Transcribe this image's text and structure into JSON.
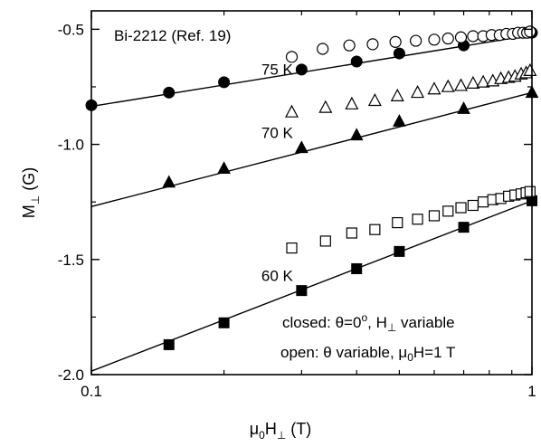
{
  "chart_data": {
    "type": "scatter",
    "title": "",
    "xlabel": {
      "main": "μ",
      "sub1": "0",
      "mid": "H",
      "sub2": "⊥",
      "unit": " (T)"
    },
    "ylabel": {
      "main": "M",
      "sub": "⊥",
      "unit": " (G)"
    },
    "x_scale": "log",
    "xlim": [
      0.1,
      1
    ],
    "ylim": [
      -2.0,
      -0.42
    ],
    "x_ticks": [
      0.1,
      1
    ],
    "x_tick_labels": [
      "0.1",
      "1"
    ],
    "y_ticks": [
      -2.0,
      -1.5,
      -1.0,
      -0.5
    ],
    "y_tick_labels": [
      "-2.0",
      "-1.5",
      "-1.0",
      "-0.5"
    ],
    "grid": false,
    "annotations": {
      "source": "Bi-2212 (Ref. 19)",
      "closed_legend": {
        "prefix": "closed: θ=0",
        "degree": "o",
        "suffix": ", H",
        "sub": "⊥",
        "tail": " variable"
      },
      "open_legend": {
        "prefix": "open: θ variable, μ",
        "sub": "0",
        "tail": "H=1 T"
      }
    },
    "series": [
      {
        "label": "75 K",
        "style": "closed",
        "marker": "circle",
        "x": [
          0.1,
          0.15,
          0.2,
          0.3,
          0.4,
          0.5,
          0.7,
          1.0
        ],
        "y": [
          -0.83,
          -0.775,
          -0.73,
          -0.675,
          -0.64,
          -0.605,
          -0.57,
          -0.515
        ]
      },
      {
        "label": "75 K",
        "style": "open",
        "marker": "circle",
        "x": [
          0.285,
          0.335,
          0.385,
          0.435,
          0.49,
          0.545,
          0.6,
          0.645,
          0.69,
          0.735,
          0.775,
          0.81,
          0.845,
          0.875,
          0.905,
          0.93,
          0.955,
          0.975,
          0.99
        ],
        "y": [
          -0.62,
          -0.585,
          -0.57,
          -0.565,
          -0.555,
          -0.55,
          -0.545,
          -0.54,
          -0.535,
          -0.53,
          -0.53,
          -0.525,
          -0.525,
          -0.52,
          -0.52,
          -0.515,
          -0.515,
          -0.515,
          -0.51
        ]
      },
      {
        "label": "70 K",
        "style": "closed",
        "marker": "triangle",
        "x": [
          0.15,
          0.2,
          0.3,
          0.4,
          0.5,
          0.7,
          1.0
        ],
        "y": [
          -1.165,
          -1.105,
          -1.015,
          -0.96,
          -0.9,
          -0.845,
          -0.775
        ]
      },
      {
        "label": "70 K",
        "style": "open",
        "marker": "triangle",
        "x": [
          0.285,
          0.34,
          0.39,
          0.44,
          0.495,
          0.55,
          0.6,
          0.645,
          0.69,
          0.735,
          0.775,
          0.815,
          0.85,
          0.885,
          0.915,
          0.945,
          0.97,
          0.99
        ],
        "y": [
          -0.86,
          -0.84,
          -0.825,
          -0.81,
          -0.79,
          -0.775,
          -0.76,
          -0.75,
          -0.745,
          -0.735,
          -0.73,
          -0.725,
          -0.715,
          -0.71,
          -0.705,
          -0.695,
          -0.69,
          -0.68
        ]
      },
      {
        "label": "60 K",
        "style": "closed",
        "marker": "square",
        "x": [
          0.15,
          0.2,
          0.3,
          0.4,
          0.5,
          0.7,
          1.0
        ],
        "y": [
          -1.87,
          -1.775,
          -1.635,
          -1.54,
          -1.465,
          -1.36,
          -1.245
        ]
      },
      {
        "label": "60 K",
        "style": "open",
        "marker": "square",
        "x": [
          0.285,
          0.34,
          0.39,
          0.44,
          0.495,
          0.55,
          0.6,
          0.645,
          0.69,
          0.735,
          0.775,
          0.815,
          0.85,
          0.885,
          0.915,
          0.945,
          0.97,
          0.99
        ],
        "y": [
          -1.45,
          -1.42,
          -1.385,
          -1.37,
          -1.34,
          -1.325,
          -1.31,
          -1.29,
          -1.275,
          -1.265,
          -1.25,
          -1.24,
          -1.235,
          -1.225,
          -1.22,
          -1.215,
          -1.21,
          -1.205
        ]
      }
    ],
    "fits": [
      {
        "label": "75 K",
        "x": [
          0.1,
          1.0
        ],
        "y": [
          -0.835,
          -0.525
        ]
      },
      {
        "label": "70 K",
        "x": [
          0.1,
          1.0
        ],
        "y": [
          -1.27,
          -0.775
        ]
      },
      {
        "label": "60 K",
        "x": [
          0.1,
          1.0
        ],
        "y": [
          -1.985,
          -1.245
        ]
      }
    ],
    "series_labels": [
      {
        "text": "75 K",
        "x": 0.165,
        "y": -0.725
      },
      {
        "text": "70 K",
        "x": 0.165,
        "y": -1.0
      },
      {
        "text": "60 K",
        "x": 0.165,
        "y": -1.62
      }
    ]
  }
}
